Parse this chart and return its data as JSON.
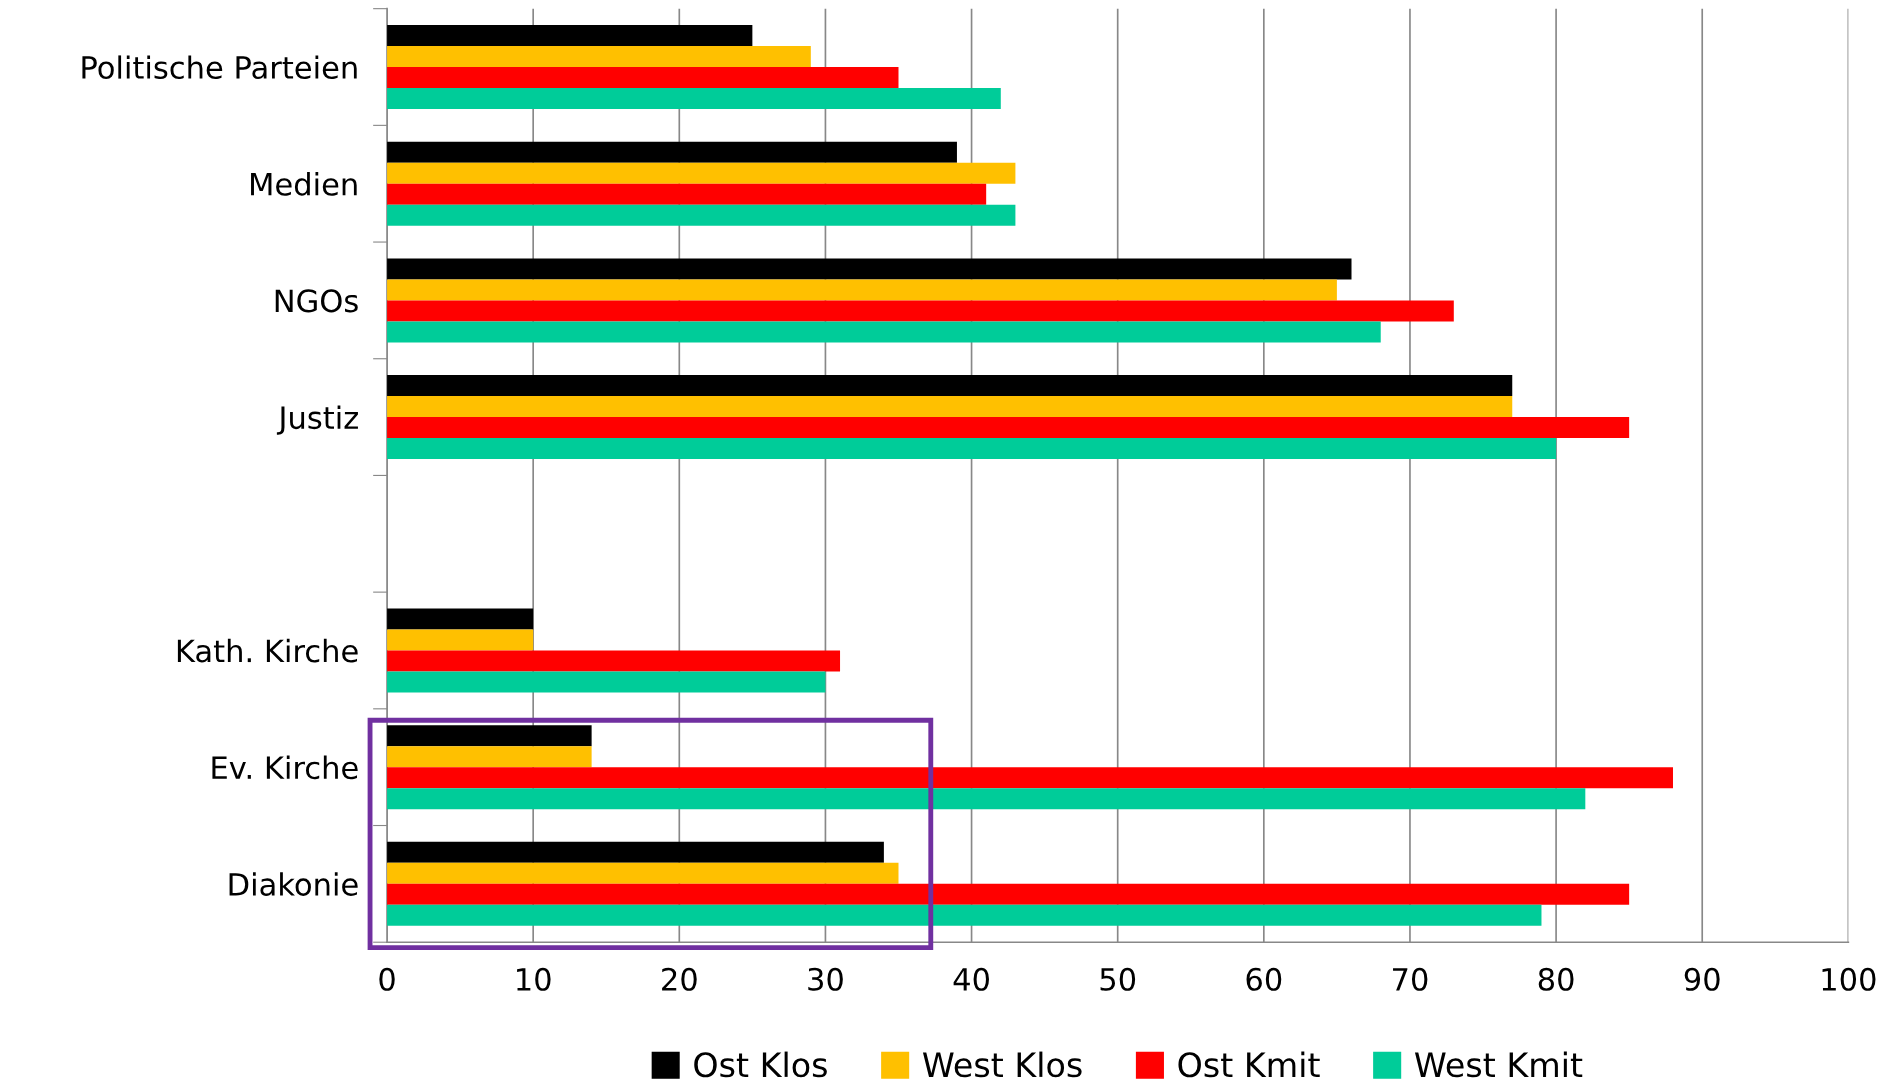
{
  "chart_data": {
    "type": "bar",
    "orientation": "horizontal",
    "categories": [
      "Politische Parteien",
      "Medien",
      "NGOs",
      "Justiz",
      null,
      "Kath. Kirche",
      "Ev. Kirche",
      "Diakonie"
    ],
    "series": [
      {
        "name": "Ost Klos",
        "color": "#000000",
        "values": [
          25,
          39,
          66,
          77,
          null,
          10,
          14,
          34
        ]
      },
      {
        "name": "West Klos",
        "color": "#ffc000",
        "values": [
          29,
          43,
          65,
          77,
          null,
          10,
          14,
          35
        ]
      },
      {
        "name": "Ost Kmit",
        "color": "#ff0000",
        "values": [
          35,
          41,
          73,
          85,
          null,
          31,
          88,
          85
        ]
      },
      {
        "name": "West Kmit",
        "color": "#00cc99",
        "values": [
          42,
          43,
          68,
          80,
          null,
          30,
          82,
          79
        ]
      }
    ],
    "xlim": [
      0,
      100
    ],
    "xticks": [
      0,
      10,
      20,
      30,
      40,
      50,
      60,
      70,
      80,
      90,
      100
    ],
    "grid": "x",
    "legend": "bottom"
  }
}
